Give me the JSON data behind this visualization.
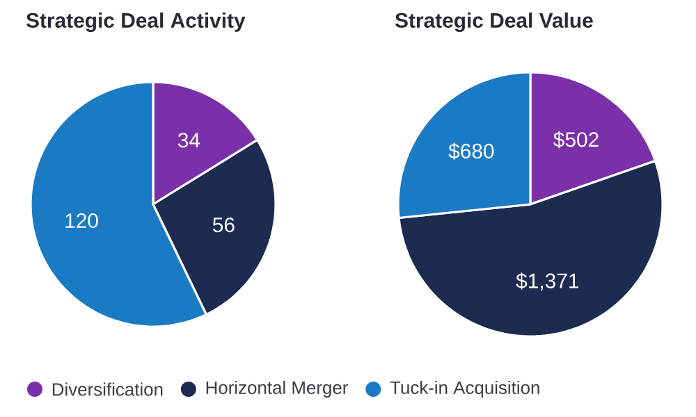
{
  "chart_data": [
    {
      "type": "pie",
      "title": "Strategic Deal Activity",
      "categories": [
        "Diversification",
        "Horizontal Merger",
        "Tuck-in Acquisition"
      ],
      "values": [
        34,
        56,
        120
      ],
      "colors": [
        "#7b2fa8",
        "#1c2b4f",
        "#1a7ac4"
      ],
      "data_labels": true,
      "legend": "bottom"
    },
    {
      "type": "pie",
      "title": "Strategic Deal Value",
      "categories": [
        null,
        null,
        null
      ],
      "values": [
        502,
        1371,
        680
      ],
      "colors": [
        "#7b2fa8",
        "#1c2b4f",
        "#1a7ac4"
      ],
      "value_labels": [
        "$502",
        "$1,371",
        "$680"
      ]
    }
  ]
}
